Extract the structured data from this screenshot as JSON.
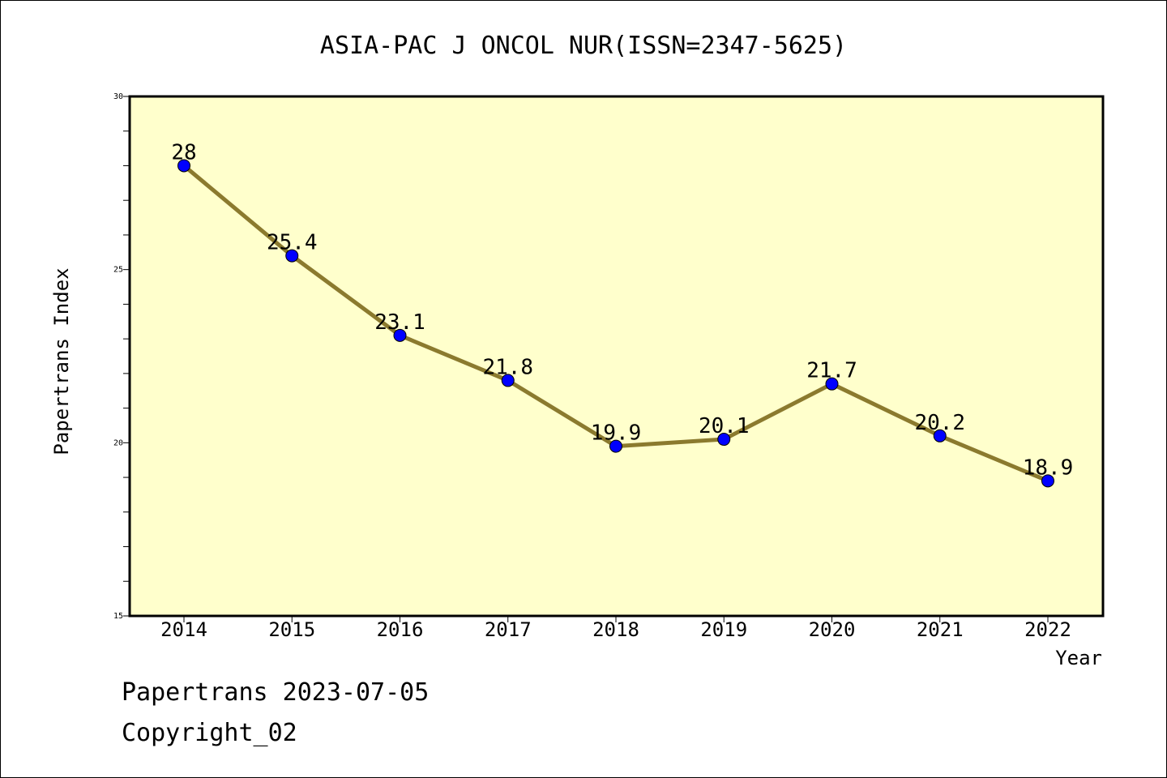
{
  "chart_data": {
    "type": "line",
    "title": "ASIA-PAC J ONCOL NUR(ISSN=2347-5625)",
    "xlabel": "Year",
    "ylabel": "Papertrans Index",
    "categories": [
      "2014",
      "2015",
      "2016",
      "2017",
      "2018",
      "2019",
      "2020",
      "2021",
      "2022"
    ],
    "series": [
      {
        "values": [
          28,
          25.4,
          23.1,
          21.8,
          19.9,
          20.1,
          21.7,
          20.2,
          18.9
        ],
        "data_labels": [
          "28",
          "25.4",
          "23.1",
          "21.8",
          "19.9",
          "20.1",
          "21.7",
          "20.2",
          "18.9"
        ]
      }
    ],
    "ylim": [
      15,
      30
    ],
    "yticks": [
      "15",
      "20",
      "25",
      "30"
    ],
    "grid": false,
    "colors": {
      "plot_background": "#ffffcc",
      "line": "#8b7a2e",
      "marker": "#0000ff"
    }
  },
  "footer": {
    "line1": "Papertrans 2023-07-05",
    "line2": "Copyright_02"
  }
}
